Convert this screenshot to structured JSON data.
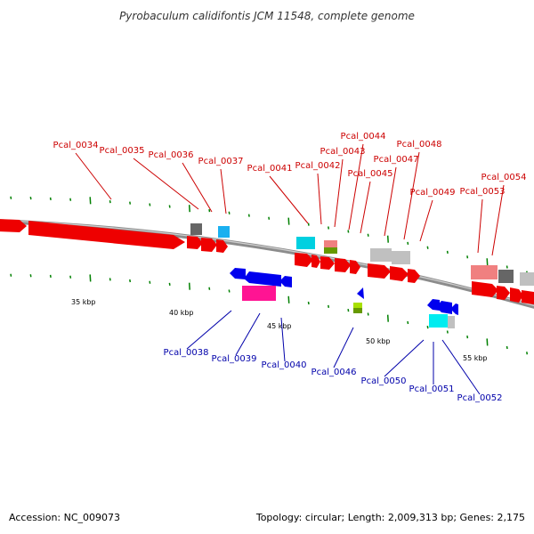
{
  "title": "Pyrobaculum calidifontis JCM 11548, complete genome",
  "footer": {
    "accession": "Accession: NC_009073",
    "topology": "Topology: circular; Length: 2,009,313 bp; Genes: 2,175"
  },
  "colors": {
    "forward_label": "#cc0000",
    "reverse_label": "#0000aa",
    "tick": "#008000",
    "backbone": "#808080",
    "red": "#ff0000",
    "blue": "#0000ff",
    "magenta": "#ff1493",
    "cyan": "#00d0e0",
    "skyblue": "#1ab0f0",
    "salmon": "#f08080",
    "darkgray": "#666666",
    "lightgray": "#c0c0c0",
    "olive": "#669900",
    "lime": "#a8e000"
  },
  "scale": {
    "labels": [
      "35 kbp",
      "40 kbp",
      "45 kbp",
      "50 kbp",
      "55 kbp"
    ]
  },
  "forward_genes": [
    {
      "label": "Pcal_0034"
    },
    {
      "label": "Pcal_0035"
    },
    {
      "label": "Pcal_0036"
    },
    {
      "label": "Pcal_0037"
    },
    {
      "label": "Pcal_0041"
    },
    {
      "label": "Pcal_0042"
    },
    {
      "label": "Pcal_0043"
    },
    {
      "label": "Pcal_0044"
    },
    {
      "label": "Pcal_0045"
    },
    {
      "label": "Pcal_0047"
    },
    {
      "label": "Pcal_0048"
    },
    {
      "label": "Pcal_0049"
    },
    {
      "label": "Pcal_0053"
    },
    {
      "label": "Pcal_0054"
    }
  ],
  "reverse_genes": [
    {
      "label": "Pcal_0038"
    },
    {
      "label": "Pcal_0039"
    },
    {
      "label": "Pcal_0040"
    },
    {
      "label": "Pcal_0046"
    },
    {
      "label": "Pcal_0050"
    },
    {
      "label": "Pcal_0051"
    },
    {
      "label": "Pcal_0052"
    }
  ]
}
